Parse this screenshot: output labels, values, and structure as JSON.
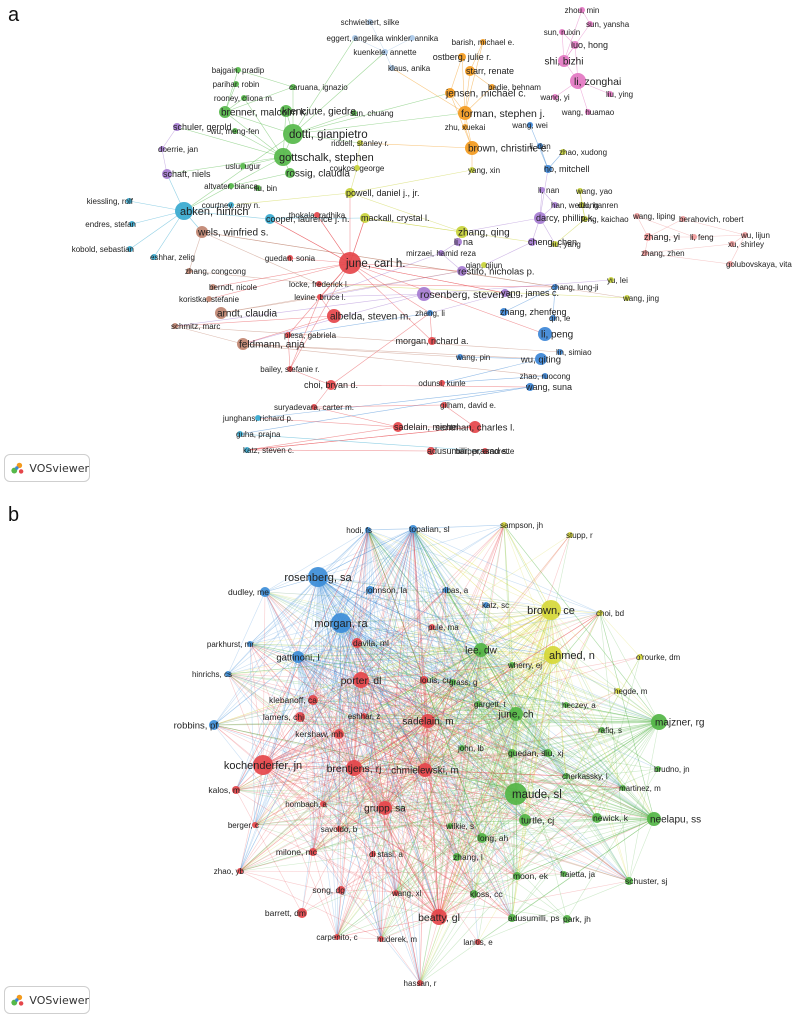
{
  "panels": [
    {
      "letter": "a",
      "logo_text": "VOSviewer",
      "clusters": {
        "pink": "#e377c2",
        "orange": "#f39a1d",
        "green": "#56b94a",
        "lblue": "#a9c8e8",
        "cyan": "#37a9cf",
        "purple": "#a57bd1",
        "yellow": "#c8d23a",
        "red": "#e5454a",
        "blue": "#3c86d6",
        "brown": "#c08470",
        "salmon": "#ef9a9a"
      },
      "nodes": [
        [
          "schwiebert, silke",
          "lblue"
        ],
        [
          "eggert, angelika",
          "lblue"
        ],
        [
          "winkler, annika",
          "lblue"
        ],
        [
          "kuenkele, annette",
          "lblue"
        ],
        [
          "klaus, anika",
          "lblue"
        ],
        [
          "barish, michael e.",
          "orange"
        ],
        [
          "ostberg, julie r.",
          "orange"
        ],
        [
          "starr, renate",
          "orange"
        ],
        [
          "jensen, michael c.",
          "orange"
        ],
        [
          "badie, behnam",
          "orange"
        ],
        [
          "forman, stephen j.",
          "orange"
        ],
        [
          "zhu, xuekai",
          "orange"
        ],
        [
          "brown, christine e.",
          "orange"
        ],
        [
          "zhou, min",
          "pink"
        ],
        [
          "sun, yansha",
          "pink"
        ],
        [
          "sun, ruixin",
          "pink"
        ],
        [
          "luo, hong",
          "pink"
        ],
        [
          "shi, bizhi",
          "pink"
        ],
        [
          "li, zonghai",
          "pink"
        ],
        [
          "wang, yi",
          "pink"
        ],
        [
          "liu, ying",
          "pink"
        ],
        [
          "wang, huamao",
          "pink"
        ],
        [
          "bajgain, pradip",
          "green"
        ],
        [
          "parihar, robin",
          "green"
        ],
        [
          "caruana, ignazio",
          "green"
        ],
        [
          "rooney, cliona m.",
          "green"
        ],
        [
          "brenner, malcolm k.",
          "green"
        ],
        [
          "krenciute, giedre",
          "green"
        ],
        [
          "wu, meng-fen",
          "green"
        ],
        [
          "sun, chuang",
          "green"
        ],
        [
          "dotti, gianpietro",
          "green"
        ],
        [
          "gottschalk, stephen",
          "green"
        ],
        [
          "uslu, ugur",
          "green"
        ],
        [
          "rossig, claudia",
          "green"
        ],
        [
          "altvater, bianca",
          "green"
        ],
        [
          "liu, bin",
          "green"
        ],
        [
          "schuler, gerold",
          "purple"
        ],
        [
          "doerrie, jan",
          "purple"
        ],
        [
          "schaft, niels",
          "purple"
        ],
        [
          "riddell, stanley r.",
          "yellow"
        ],
        [
          "coukos, george",
          "yellow"
        ],
        [
          "yang, xin",
          "yellow"
        ],
        [
          "wang, wei",
          "blue"
        ],
        [
          "li, dan",
          "blue"
        ],
        [
          "zhao, xudong",
          "yellow"
        ],
        [
          "ho, mitchell",
          "blue"
        ],
        [
          "li, nan",
          "purple"
        ],
        [
          "han, weidong",
          "purple"
        ],
        [
          "wang, yao",
          "yellow"
        ],
        [
          "dai, hanren",
          "yellow"
        ],
        [
          "feng, kaichao",
          "yellow"
        ],
        [
          "liu, yang",
          "yellow"
        ],
        [
          "kiessling, rolf",
          "cyan"
        ],
        [
          "abken, hinrich",
          "cyan"
        ],
        [
          "courtney, amy n.",
          "cyan"
        ],
        [
          "cooper, laurence j. n.",
          "cyan"
        ],
        [
          "powell, daniel j., jr.",
          "yellow"
        ],
        [
          "mackall, crystal l.",
          "yellow"
        ],
        [
          "darcy, phillip k.",
          "purple"
        ],
        [
          "endres, stefan",
          "cyan"
        ],
        [
          "wels, winfried s.",
          "brown"
        ],
        [
          "kobold, sebastian",
          "cyan"
        ],
        [
          "eshhar, zelig",
          "cyan"
        ],
        [
          "thokala, radhika",
          "red"
        ],
        [
          "zhang, qing",
          "yellow"
        ],
        [
          "li, na",
          "purple"
        ],
        [
          "cheng, chen",
          "purple"
        ],
        [
          "wang, liping",
          "salmon"
        ],
        [
          "berahovich, robert",
          "salmon"
        ],
        [
          "zhang, yi",
          "salmon"
        ],
        [
          "li, feng",
          "salmon"
        ],
        [
          "wu, lijun",
          "salmon"
        ],
        [
          "xu, shirley",
          "salmon"
        ],
        [
          "zhang, zhen",
          "salmon"
        ],
        [
          "golubovskaya, vita",
          "salmon"
        ],
        [
          "zhang, congcong",
          "brown"
        ],
        [
          "guedan, sonia",
          "red"
        ],
        [
          "june, carl h.",
          "red"
        ],
        [
          "mirzaei, hamid reza",
          "purple"
        ],
        [
          "qian, qijun",
          "yellow"
        ],
        [
          "restifo, nicholas p.",
          "purple"
        ],
        [
          "yu, lei",
          "yellow"
        ],
        [
          "wang, jing",
          "yellow"
        ],
        [
          "berndt, nicole",
          "brown"
        ],
        [
          "locke, frederick l.",
          "red"
        ],
        [
          "koristka, stefanie",
          "brown"
        ],
        [
          "levine, bruce l.",
          "red"
        ],
        [
          "rosenberg, steven a.",
          "purple"
        ],
        [
          "chang, lung-ji",
          "blue"
        ],
        [
          "yang, james c.",
          "purple"
        ],
        [
          "arndt, claudia",
          "brown"
        ],
        [
          "albelda, steven m.",
          "red"
        ],
        [
          "zhang, li",
          "blue"
        ],
        [
          "zhang, zhenfeng",
          "blue"
        ],
        [
          "qin, le",
          "blue"
        ],
        [
          "li, peng",
          "blue"
        ],
        [
          "schmitz, marc",
          "brown"
        ],
        [
          "feldmann, anja",
          "brown"
        ],
        [
          "plesa, gabriela",
          "red"
        ],
        [
          "morgan, richard a.",
          "red"
        ],
        [
          "lin, simiao",
          "blue"
        ],
        [
          "wang, pin",
          "blue"
        ],
        [
          "wu, qiting",
          "blue"
        ],
        [
          "bailey, stefanie r.",
          "red"
        ],
        [
          "zhao, ruocong",
          "blue"
        ],
        [
          "choi, bryan d.",
          "red"
        ],
        [
          "odunsi, kunle",
          "red"
        ],
        [
          "wang, suna",
          "blue"
        ],
        [
          "suryadevara, carter m.",
          "red"
        ],
        [
          "gilham, david e.",
          "red"
        ],
        [
          "junghans, richard p.",
          "cyan"
        ],
        [
          "guha, prajna",
          "cyan"
        ],
        [
          "sadelain, michel",
          "red"
        ],
        [
          "sentman, charles l.",
          "red"
        ],
        [
          "katz, steven c.",
          "cyan"
        ],
        [
          "adusumilli, prasad s.",
          "red"
        ],
        [
          "barber, amorette",
          "red"
        ]
      ]
    },
    {
      "letter": "b",
      "logo_text": "VOSviewer",
      "clusters": {
        "blue": "#3c8dd8",
        "yellow": "#d6d83a",
        "red": "#e5454a",
        "green": "#53b545"
      },
      "nodes": [
        [
          "hodi, fs",
          "blue"
        ],
        [
          "topalian, sl",
          "blue"
        ],
        [
          "sampson, jh",
          "yellow"
        ],
        [
          "stupp, r",
          "yellow"
        ],
        [
          "rosenberg, sa",
          "blue"
        ],
        [
          "dudley, me",
          "blue"
        ],
        [
          "johnson, la",
          "blue"
        ],
        [
          "ribas, a",
          "blue"
        ],
        [
          "brown, ce",
          "yellow"
        ],
        [
          "katz, sc",
          "blue"
        ],
        [
          "choi, bd",
          "yellow"
        ],
        [
          "morgan, ra",
          "blue"
        ],
        [
          "pule, ma",
          "red"
        ],
        [
          "parkhurst, mr",
          "blue"
        ],
        [
          "davila, ml",
          "red"
        ],
        [
          "gattinoni, l",
          "blue"
        ],
        [
          "lee, dw",
          "green"
        ],
        [
          "ahmed, n",
          "yellow"
        ],
        [
          "o'rourke, dm",
          "yellow"
        ],
        [
          "wherry, ej",
          "green"
        ],
        [
          "hinrichs, cs",
          "blue"
        ],
        [
          "porter, dl",
          "red"
        ],
        [
          "louis, cu",
          "red"
        ],
        [
          "grass, g",
          "green"
        ],
        [
          "hegde, m",
          "yellow"
        ],
        [
          "klebanoff, ca",
          "red"
        ],
        [
          "gargett, t",
          "green"
        ],
        [
          "heczey, a",
          "green"
        ],
        [
          "lamers, chj",
          "red"
        ],
        [
          "june, ch",
          "green"
        ],
        [
          "majzner, rg",
          "green"
        ],
        [
          "eshhar, z",
          "red"
        ],
        [
          "robbins, pf",
          "blue"
        ],
        [
          "rafiq, s",
          "green"
        ],
        [
          "sadelain, m",
          "red"
        ],
        [
          "kershaw, mh",
          "red"
        ],
        [
          "john, lb",
          "green"
        ],
        [
          "guedan, s",
          "green"
        ],
        [
          "liu, xj",
          "green"
        ],
        [
          "kochenderfer, jn",
          "red"
        ],
        [
          "brentjens, rj",
          "red"
        ],
        [
          "chmielewski, m",
          "red"
        ],
        [
          "brudno, jn",
          "green"
        ],
        [
          "cherkassky, l",
          "green"
        ],
        [
          "kalos, m",
          "red"
        ],
        [
          "maude, sl",
          "green"
        ],
        [
          "martinez, m",
          "green"
        ],
        [
          "hombach, a",
          "red"
        ],
        [
          "grupp, sa",
          "red"
        ],
        [
          "turtle, cj",
          "green"
        ],
        [
          "newick, k",
          "green"
        ],
        [
          "neelapu, ss",
          "green"
        ],
        [
          "berger, c",
          "red"
        ],
        [
          "savoldo, b",
          "red"
        ],
        [
          "wilkie, s",
          "green"
        ],
        [
          "long, ah",
          "green"
        ],
        [
          "milone, mc",
          "red"
        ],
        [
          "di stasi, a",
          "red"
        ],
        [
          "zhang, l",
          "green"
        ],
        [
          "zhao, yb",
          "red"
        ],
        [
          "fraietta, ja",
          "green"
        ],
        [
          "moon, ek",
          "green"
        ],
        [
          "schuster, sj",
          "green"
        ],
        [
          "song, dg",
          "red"
        ],
        [
          "wang, xl",
          "red"
        ],
        [
          "kloss, cc",
          "green"
        ],
        [
          "barrett, dm",
          "red"
        ],
        [
          "beatty, gl",
          "red"
        ],
        [
          "adusumilli, ps",
          "green"
        ],
        [
          "park, jh",
          "green"
        ],
        [
          "carpenito, c",
          "red"
        ],
        [
          "huderek, m",
          "red"
        ],
        [
          "lanitis, e",
          "red"
        ],
        [
          "hassan, r",
          "red"
        ]
      ]
    }
  ]
}
